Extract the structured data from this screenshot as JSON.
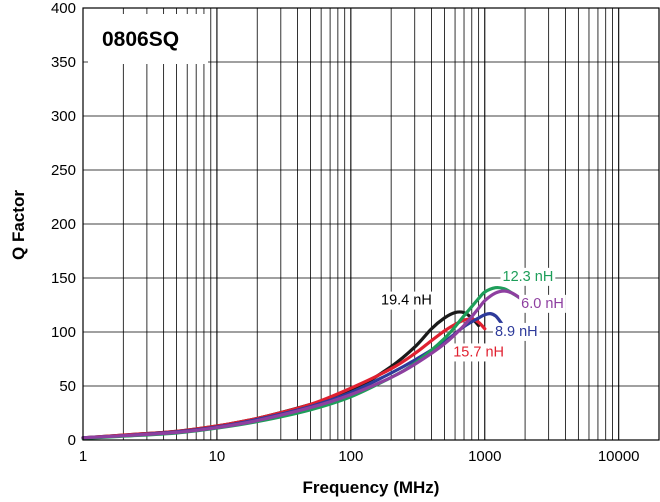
{
  "chart_data": {
    "type": "line",
    "title": "0806SQ",
    "xlabel": "Frequency (MHz)",
    "ylabel": "Q Factor",
    "x_scale": "log",
    "xlim": [
      1,
      20000
    ],
    "ylim": [
      0,
      400
    ],
    "x_tick_labels": [
      {
        "value": 1,
        "label": "1"
      },
      {
        "value": 10,
        "label": "10"
      },
      {
        "value": 100,
        "label": "100"
      },
      {
        "value": 1000,
        "label": "1000"
      },
      {
        "value": 10000,
        "label": "10000"
      }
    ],
    "y_tick_labels": [
      {
        "value": 0,
        "label": "0"
      },
      {
        "value": 50,
        "label": "50"
      },
      {
        "value": 100,
        "label": "100"
      },
      {
        "value": 150,
        "label": "150"
      },
      {
        "value": 200,
        "label": "200"
      },
      {
        "value": 250,
        "label": "250"
      },
      {
        "value": 300,
        "label": "300"
      },
      {
        "value": 350,
        "label": "350"
      },
      {
        "value": 400,
        "label": "400"
      }
    ],
    "grid": true,
    "series": [
      {
        "name": "19.4 nH",
        "color": "#1a1a1a",
        "points": [
          [
            1,
            2
          ],
          [
            2,
            4.5
          ],
          [
            5,
            8
          ],
          [
            10,
            13
          ],
          [
            20,
            20
          ],
          [
            50,
            33
          ],
          [
            100,
            45
          ],
          [
            200,
            68
          ],
          [
            300,
            86
          ],
          [
            400,
            103
          ],
          [
            500,
            113
          ],
          [
            600,
            118
          ],
          [
            700,
            118
          ],
          [
            800,
            113
          ],
          [
            900,
            106
          ]
        ]
      },
      {
        "name": "15.7 nH",
        "color": "#e02030",
        "points": [
          [
            1,
            2
          ],
          [
            2,
            4.5
          ],
          [
            5,
            8
          ],
          [
            10,
            13
          ],
          [
            20,
            20
          ],
          [
            50,
            33
          ],
          [
            100,
            48
          ],
          [
            200,
            66
          ],
          [
            300,
            80
          ],
          [
            400,
            92
          ],
          [
            500,
            101
          ],
          [
            600,
            107
          ],
          [
            700,
            111
          ],
          [
            800,
            112
          ],
          [
            900,
            109
          ],
          [
            1000,
            103
          ]
        ]
      },
      {
        "name": "8.9 nH",
        "color": "#2d3a9a",
        "points": [
          [
            1,
            2
          ],
          [
            2,
            4
          ],
          [
            5,
            7.5
          ],
          [
            10,
            12
          ],
          [
            20,
            19
          ],
          [
            50,
            31
          ],
          [
            100,
            44
          ],
          [
            200,
            62
          ],
          [
            300,
            74
          ],
          [
            500,
            91
          ],
          [
            700,
            105
          ],
          [
            900,
            113
          ],
          [
            1000,
            116
          ],
          [
            1100,
            117
          ],
          [
            1200,
            115
          ],
          [
            1300,
            110
          ],
          [
            1400,
            104
          ]
        ]
      },
      {
        "name": "12.3 nH",
        "color": "#1e9e5a",
        "points": [
          [
            1,
            1.5
          ],
          [
            2,
            3.5
          ],
          [
            5,
            6.5
          ],
          [
            10,
            11
          ],
          [
            20,
            17
          ],
          [
            50,
            28
          ],
          [
            100,
            40
          ],
          [
            200,
            58
          ],
          [
            300,
            71
          ],
          [
            500,
            94
          ],
          [
            700,
            115
          ],
          [
            900,
            131
          ],
          [
            1000,
            137
          ],
          [
            1200,
            141
          ],
          [
            1400,
            140
          ],
          [
            1600,
            136
          ],
          [
            1800,
            132
          ]
        ]
      },
      {
        "name": "6.0 nH",
        "color": "#8e3fa0",
        "points": [
          [
            1,
            2
          ],
          [
            2,
            4
          ],
          [
            5,
            7
          ],
          [
            10,
            11.5
          ],
          [
            20,
            18
          ],
          [
            50,
            30
          ],
          [
            100,
            42
          ],
          [
            200,
            58
          ],
          [
            300,
            70
          ],
          [
            500,
            89
          ],
          [
            700,
            106
          ],
          [
            900,
            122
          ],
          [
            1000,
            129
          ],
          [
            1200,
            136
          ],
          [
            1400,
            138
          ],
          [
            1600,
            136
          ],
          [
            1800,
            132
          ],
          [
            2000,
            127
          ]
        ]
      }
    ],
    "labels": [
      {
        "series": "19.4 nH",
        "text": "19.4 nH",
        "x": 260,
        "y": 130,
        "color": "#000000"
      },
      {
        "series": "15.7 nH",
        "text": "15.7 nH",
        "x": 900,
        "y": 82,
        "color": "#e02030"
      },
      {
        "series": "8.9 nH",
        "text": "8.9 nH",
        "x": 1720,
        "y": 101,
        "color": "#2d3a9a"
      },
      {
        "series": "12.3 nH",
        "text": "12.3 nH",
        "x": 2100,
        "y": 152,
        "color": "#1e9e5a"
      },
      {
        "series": "6.0 nH",
        "text": "6.0 nH",
        "x": 2700,
        "y": 127,
        "color": "#8e3fa0"
      }
    ]
  }
}
